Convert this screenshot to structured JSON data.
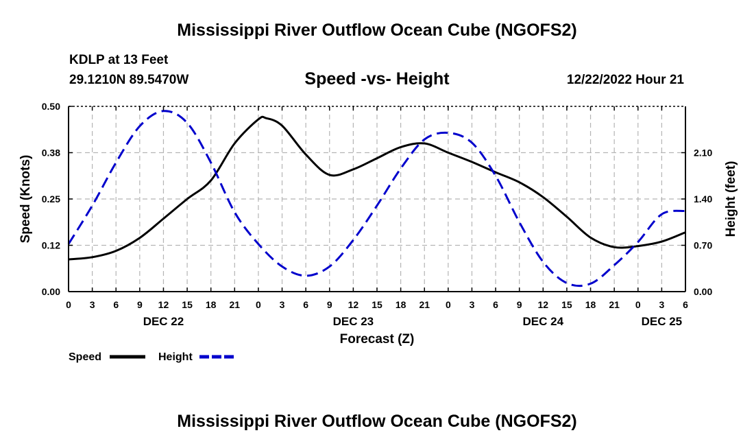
{
  "page": {
    "main_title": "Mississippi River Outflow Ocean Cube (NGOFS2)",
    "footer_title": "Mississippi River Outflow Ocean Cube (NGOFS2)",
    "station": "KDLP at 13 Feet",
    "coords": "29.1210N  89.5470W",
    "subtitle": "Speed -vs- Height",
    "date_label": "12/22/2022 Hour 21"
  },
  "colors": {
    "speed": "#000000",
    "height": "#0000cc",
    "grid": "#b4b4b4"
  },
  "chart_data": {
    "type": "line",
    "title": "Speed -vs- Height",
    "xlabel": "Forecast (Z)",
    "ylabel": "Speed (Knots)",
    "ylabel_right": "Height (feet)",
    "x_unit": "hours from Dec 22 00Z",
    "xlim": [
      0,
      78
    ],
    "ylim": [
      0,
      0.5
    ],
    "ylim_right": [
      0,
      2.8
    ],
    "grid": true,
    "x_ticks": [
      0,
      3,
      6,
      9,
      12,
      15,
      18,
      21,
      24,
      27,
      30,
      33,
      36,
      39,
      42,
      45,
      48,
      51,
      54,
      57,
      60,
      63,
      66,
      69,
      72,
      75,
      78
    ],
    "x_tick_labels": [
      "0",
      "3",
      "6",
      "9",
      "12",
      "15",
      "18",
      "21",
      "0",
      "3",
      "6",
      "9",
      "12",
      "15",
      "18",
      "21",
      "0",
      "3",
      "6",
      "9",
      "12",
      "15",
      "18",
      "21",
      "0",
      "3",
      "6"
    ],
    "day_labels": [
      {
        "x": 12,
        "label": "DEC 22"
      },
      {
        "x": 36,
        "label": "DEC 23"
      },
      {
        "x": 60,
        "label": "DEC 24"
      },
      {
        "x": 75,
        "label": "DEC 25"
      }
    ],
    "y_ticks": [
      0.0,
      0.125,
      0.25,
      0.375,
      0.5
    ],
    "y_tick_labels": [
      "0.00",
      "0.12",
      "0.25",
      "0.38",
      "0.50"
    ],
    "y_right_ticks": [
      0.0,
      0.7,
      1.4,
      2.1
    ],
    "y_right_tick_labels": [
      "0.00",
      "0.70",
      "1.40",
      "2.10"
    ],
    "series": [
      {
        "name": "Speed",
        "axis": "left",
        "style": "solid",
        "x": [
          0,
          3,
          6,
          9,
          12,
          15,
          18,
          21,
          24,
          25,
          27,
          30,
          33,
          36,
          39,
          42,
          45,
          48,
          51,
          54,
          57,
          60,
          63,
          66,
          69,
          72,
          75,
          78
        ],
        "values": [
          0.087,
          0.093,
          0.11,
          0.145,
          0.197,
          0.25,
          0.3,
          0.4,
          0.465,
          0.468,
          0.448,
          0.37,
          0.315,
          0.33,
          0.36,
          0.39,
          0.4,
          0.375,
          0.35,
          0.322,
          0.295,
          0.255,
          0.202,
          0.146,
          0.12,
          0.123,
          0.135,
          0.16
        ]
      },
      {
        "name": "Height",
        "axis": "right",
        "style": "dashed",
        "x": [
          0,
          3,
          6,
          9,
          12,
          15,
          18,
          21,
          24,
          27,
          30,
          33,
          36,
          39,
          42,
          45,
          48,
          51,
          54,
          57,
          60,
          63,
          66,
          69,
          72,
          75,
          78
        ],
        "values": [
          0.72,
          1.3,
          1.95,
          2.5,
          2.73,
          2.55,
          1.95,
          1.2,
          0.72,
          0.38,
          0.24,
          0.38,
          0.78,
          1.3,
          1.86,
          2.3,
          2.4,
          2.25,
          1.75,
          1.05,
          0.45,
          0.13,
          0.12,
          0.4,
          0.75,
          1.17,
          1.22
        ]
      }
    ],
    "legend": [
      {
        "label": "Speed",
        "style": "solid"
      },
      {
        "label": "Height",
        "style": "dashed"
      }
    ]
  }
}
